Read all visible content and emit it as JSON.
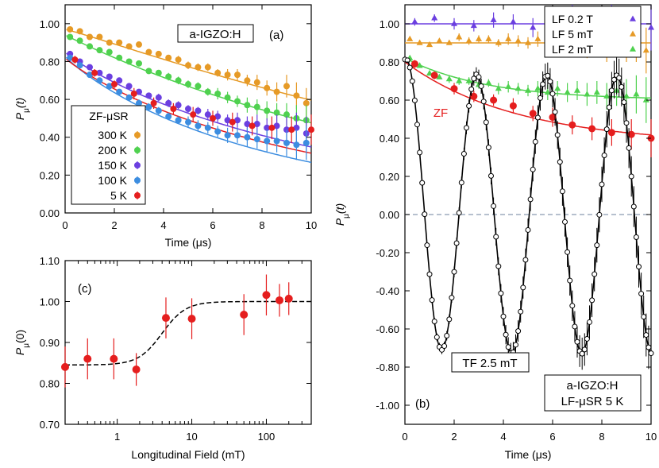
{
  "chart_data": [
    {
      "id": "a",
      "type": "scatter",
      "panel_label": "(a)",
      "sample_label": "a-IGZO:H",
      "xlabel": "Time (μs)",
      "ylabel_main": "P",
      "ylabel_sub": "μ",
      "ylabel_arg": "(t)",
      "xlim": [
        0,
        10
      ],
      "ylim": [
        0,
        1.1
      ],
      "xticks": [
        "0",
        "2",
        "4",
        "6",
        "8",
        "10"
      ],
      "yticks": [
        "0.00",
        "0.20",
        "0.40",
        "0.60",
        "0.80",
        "1.00"
      ],
      "legend_title": "ZF-μSR",
      "series": [
        {
          "name": "300 K",
          "color": "#e69a26",
          "x": [
            0.2,
            0.6,
            1.0,
            1.4,
            1.8,
            2.2,
            2.6,
            3.0,
            3.4,
            3.8,
            4.2,
            4.6,
            5.0,
            5.4,
            5.8,
            6.2,
            6.6,
            7.0,
            7.4,
            7.8,
            8.2,
            8.6,
            9.0,
            9.4,
            9.8
          ],
          "y": [
            0.97,
            0.96,
            0.93,
            0.93,
            0.9,
            0.9,
            0.88,
            0.89,
            0.85,
            0.84,
            0.82,
            0.81,
            0.78,
            0.77,
            0.77,
            0.74,
            0.73,
            0.73,
            0.7,
            0.69,
            0.66,
            0.64,
            0.67,
            0.62,
            0.58
          ],
          "err": [
            0.01,
            0.01,
            0.01,
            0.01,
            0.01,
            0.01,
            0.01,
            0.01,
            0.01,
            0.01,
            0.01,
            0.02,
            0.02,
            0.02,
            0.02,
            0.02,
            0.03,
            0.03,
            0.03,
            0.04,
            0.04,
            0.05,
            0.06,
            0.07,
            0.08
          ],
          "fit": {
            "a": 0.97,
            "lam": 0.052,
            "beta": 1.1
          }
        },
        {
          "name": "200 K",
          "color": "#4fd14f",
          "x": [
            0.2,
            0.6,
            1.0,
            1.4,
            1.8,
            2.2,
            2.6,
            3.0,
            3.4,
            3.8,
            4.2,
            4.6,
            5.0,
            5.4,
            5.8,
            6.2,
            6.6,
            7.0,
            7.4,
            7.8,
            8.2,
            8.6,
            9.0,
            9.4,
            9.8
          ],
          "y": [
            0.93,
            0.91,
            0.88,
            0.86,
            0.85,
            0.82,
            0.8,
            0.79,
            0.75,
            0.74,
            0.72,
            0.7,
            0.68,
            0.67,
            0.64,
            0.63,
            0.61,
            0.59,
            0.57,
            0.56,
            0.54,
            0.53,
            0.52,
            0.5,
            0.49
          ],
          "err": [
            0.01,
            0.01,
            0.01,
            0.01,
            0.01,
            0.01,
            0.01,
            0.01,
            0.01,
            0.01,
            0.02,
            0.02,
            0.02,
            0.02,
            0.02,
            0.03,
            0.03,
            0.03,
            0.04,
            0.04,
            0.05,
            0.05,
            0.06,
            0.07,
            0.08
          ],
          "fit": {
            "a": 0.94,
            "lam": 0.068,
            "beta": 1.0
          }
        },
        {
          "name": "150 K",
          "color": "#6b3fe0",
          "x": [
            0.2,
            0.6,
            1.0,
            1.4,
            1.8,
            2.2,
            2.6,
            3.0,
            3.4,
            3.8,
            4.2,
            4.6,
            5.0,
            5.4,
            5.8,
            6.2,
            6.6,
            7.0,
            7.4,
            7.8,
            8.2,
            8.6,
            9.0,
            9.4,
            9.8
          ],
          "y": [
            0.84,
            0.8,
            0.77,
            0.74,
            0.72,
            0.7,
            0.67,
            0.64,
            0.62,
            0.61,
            0.58,
            0.57,
            0.55,
            0.54,
            0.52,
            0.51,
            0.49,
            0.49,
            0.47,
            0.47,
            0.45,
            0.46,
            0.44,
            0.45,
            0.42
          ],
          "err": [
            0.01,
            0.01,
            0.01,
            0.01,
            0.01,
            0.01,
            0.01,
            0.01,
            0.01,
            0.02,
            0.02,
            0.02,
            0.02,
            0.02,
            0.03,
            0.03,
            0.03,
            0.04,
            0.04,
            0.05,
            0.05,
            0.06,
            0.07,
            0.08,
            0.09
          ],
          "fit": {
            "a": 0.85,
            "lam": 0.088,
            "beta": 0.9
          }
        },
        {
          "name": "100 K",
          "color": "#3c8de0",
          "x": [
            0.2,
            0.6,
            1.0,
            1.4,
            1.8,
            2.2,
            2.6,
            3.0,
            3.4,
            3.8,
            4.2,
            4.6,
            5.0,
            5.4,
            5.8,
            6.2,
            6.6,
            7.0,
            7.4,
            7.8,
            8.2,
            8.6,
            9.0,
            9.4,
            9.8
          ],
          "y": [
            0.82,
            0.78,
            0.73,
            0.7,
            0.67,
            0.64,
            0.61,
            0.58,
            0.56,
            0.54,
            0.51,
            0.49,
            0.48,
            0.46,
            0.45,
            0.43,
            0.41,
            0.41,
            0.4,
            0.39,
            0.38,
            0.38,
            0.37,
            0.36,
            0.37
          ],
          "err": [
            0.01,
            0.01,
            0.01,
            0.01,
            0.01,
            0.01,
            0.01,
            0.02,
            0.02,
            0.02,
            0.02,
            0.02,
            0.03,
            0.03,
            0.03,
            0.03,
            0.04,
            0.04,
            0.05,
            0.05,
            0.06,
            0.06,
            0.07,
            0.08,
            0.09
          ],
          "fit": {
            "a": 0.83,
            "lam": 0.115,
            "beta": 0.9
          }
        },
        {
          "name": "5 K",
          "color": "#e51e1e",
          "x": [
            0.4,
            1.2,
            2.0,
            2.8,
            3.6,
            4.4,
            5.2,
            6.0,
            6.8,
            7.6,
            8.4,
            9.2,
            10.0
          ],
          "y": [
            0.81,
            0.74,
            0.68,
            0.63,
            0.58,
            0.55,
            0.52,
            0.5,
            0.48,
            0.46,
            0.45,
            0.44,
            0.44
          ],
          "err": [
            0.02,
            0.02,
            0.02,
            0.03,
            0.03,
            0.03,
            0.04,
            0.04,
            0.05,
            0.05,
            0.06,
            0.07,
            0.08
          ],
          "fit": {
            "a": 0.82,
            "lam": 0.095,
            "beta": 0.9
          }
        }
      ]
    },
    {
      "id": "b",
      "type": "scatter",
      "panel_label": "(b)",
      "sample_label": "a-IGZO:H",
      "method_label": "LF-μSR 5 K",
      "zf_label": "ZF",
      "tf_label": "TF 2.5 mT",
      "xlabel": "Time (μs)",
      "ylabel_main": "P",
      "ylabel_sub": "μ",
      "ylabel_arg": "(t)",
      "xlim": [
        0,
        10
      ],
      "ylim": [
        -1.1,
        1.1
      ],
      "xticks": [
        "0",
        "2",
        "4",
        "6",
        "8",
        "10"
      ],
      "yticks": [
        "-1.00",
        "-0.80",
        "-0.60",
        "-0.40",
        "-0.20",
        "0.00",
        "0.20",
        "0.40",
        "0.60",
        "0.80",
        "1.00"
      ],
      "series": [
        {
          "name": "LF 0.2 T",
          "color": "#6b3fe0",
          "marker": "triangle",
          "x": [
            0.4,
            1.2,
            2.0,
            2.8,
            3.6,
            4.4,
            5.2,
            6.0,
            6.8,
            7.6,
            8.4,
            9.2,
            10.0
          ],
          "y": [
            1.01,
            1.03,
            1.0,
            0.99,
            1.02,
            1.01,
            0.98,
            1.0,
            1.04,
            0.99,
            1.02,
            0.96,
            0.98
          ],
          "err": [
            0.02,
            0.02,
            0.03,
            0.03,
            0.04,
            0.04,
            0.05,
            0.05,
            0.06,
            0.07,
            0.08,
            0.1,
            0.12
          ]
        },
        {
          "name": "LF 5 mT",
          "color": "#e69a26",
          "marker": "triangle",
          "x": [
            0.2,
            0.6,
            1.0,
            1.4,
            1.8,
            2.2,
            2.6,
            3.0,
            3.4,
            3.8,
            4.2,
            4.6,
            5.0,
            5.4,
            5.8,
            6.2,
            6.6,
            7.0,
            7.4,
            7.8,
            8.2,
            8.6,
            9.0,
            9.4,
            9.8
          ],
          "y": [
            0.92,
            0.9,
            0.89,
            0.91,
            0.9,
            0.93,
            0.91,
            0.92,
            0.92,
            0.9,
            0.92,
            0.91,
            0.9,
            0.92,
            0.88,
            0.91,
            0.89,
            0.93,
            0.88,
            0.91,
            0.87,
            0.92,
            0.89,
            0.9,
            0.86
          ],
          "err": [
            0.01,
            0.01,
            0.01,
            0.01,
            0.01,
            0.02,
            0.02,
            0.02,
            0.02,
            0.02,
            0.03,
            0.03,
            0.03,
            0.04,
            0.04,
            0.04,
            0.05,
            0.05,
            0.06,
            0.06,
            0.07,
            0.08,
            0.09,
            0.1,
            0.12
          ],
          "fit_level": 0.9
        },
        {
          "name": "LF 2 mT",
          "color": "#4fd14f",
          "marker": "triangle",
          "x": [
            0.2,
            0.6,
            1.0,
            1.4,
            1.8,
            2.2,
            2.6,
            3.0,
            3.4,
            3.8,
            4.2,
            4.6,
            5.0,
            5.4,
            5.8,
            6.2,
            6.6,
            7.0,
            7.4,
            7.8,
            8.2,
            8.6,
            9.0,
            9.4,
            9.8
          ],
          "y": [
            0.82,
            0.78,
            0.74,
            0.72,
            0.71,
            0.7,
            0.7,
            0.68,
            0.69,
            0.66,
            0.67,
            0.66,
            0.65,
            0.66,
            0.64,
            0.66,
            0.64,
            0.65,
            0.63,
            0.64,
            0.62,
            0.65,
            0.62,
            0.63,
            0.6
          ],
          "err": [
            0.01,
            0.01,
            0.01,
            0.01,
            0.02,
            0.02,
            0.02,
            0.02,
            0.02,
            0.03,
            0.03,
            0.03,
            0.03,
            0.04,
            0.04,
            0.04,
            0.05,
            0.05,
            0.06,
            0.06,
            0.07,
            0.08,
            0.09,
            0.1,
            0.12
          ],
          "fit": {
            "a": 0.82,
            "c": 0.6,
            "lam": 0.3
          }
        },
        {
          "name": "ZF",
          "color": "#e51e1e",
          "marker": "circle",
          "x": [
            0.4,
            1.2,
            2.0,
            2.8,
            3.6,
            4.4,
            5.2,
            6.0,
            6.8,
            7.6,
            8.4,
            9.2,
            10.0
          ],
          "y": [
            0.79,
            0.73,
            0.66,
            0.62,
            0.6,
            0.57,
            0.53,
            0.51,
            0.47,
            0.45,
            0.43,
            0.42,
            0.4
          ],
          "err": [
            0.02,
            0.02,
            0.03,
            0.03,
            0.03,
            0.04,
            0.04,
            0.05,
            0.05,
            0.06,
            0.07,
            0.08,
            0.1
          ],
          "fit": {
            "a": 0.8,
            "c": 0.37,
            "lam": 0.22
          }
        },
        {
          "name": "TF 2.5 mT",
          "color": "#000000",
          "marker": "open-circle",
          "fit": {
            "amp": 0.73,
            "period": 2.85,
            "phase_deg": -8
          },
          "x_step": 0.1,
          "x_start": 0.0,
          "x_end": 10.0
        }
      ]
    },
    {
      "id": "c",
      "type": "scatter",
      "panel_label": "(c)",
      "xlabel": "Longitudinal Field (mT)",
      "ylabel_main": "P",
      "ylabel_sub": "μ",
      "ylabel_arg": "(0)",
      "xscale": "log",
      "xlim": [
        0.2,
        400
      ],
      "ylim": [
        0.7,
        1.1
      ],
      "xticks": [
        "1",
        "10",
        "100"
      ],
      "xtick_values": [
        1,
        10,
        100
      ],
      "yticks": [
        "0.70",
        "0.80",
        "0.90",
        "1.00",
        "1.10"
      ],
      "series": [
        {
          "name": "P(0)",
          "color": "#e51e1e",
          "x": [
            0.2,
            0.4,
            0.9,
            1.8,
            4.5,
            10,
            50,
            100,
            150,
            200
          ],
          "y": [
            0.84,
            0.86,
            0.86,
            0.834,
            0.96,
            0.958,
            0.968,
            1.016,
            1.003,
            1.007
          ],
          "err": [
            0.05,
            0.05,
            0.05,
            0.04,
            0.05,
            0.05,
            0.05,
            0.05,
            0.04,
            0.04
          ]
        }
      ],
      "fit": {
        "low": 0.845,
        "high": 1.0,
        "center_mT": 4.0,
        "width_decades": 0.35
      }
    }
  ]
}
